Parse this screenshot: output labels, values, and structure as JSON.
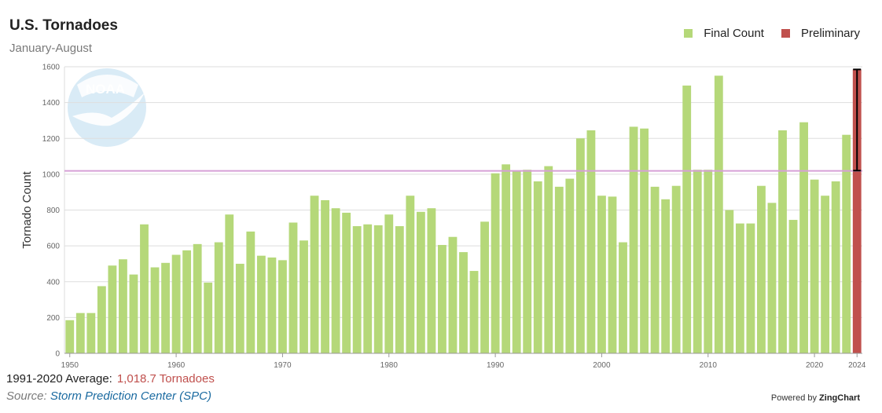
{
  "title": "U.S. Tornadoes",
  "subtitle": "January-August",
  "legend": [
    {
      "label": "Final Count",
      "color": "#b5d879"
    },
    {
      "label": "Preliminary",
      "color": "#c0504d"
    }
  ],
  "logo_text": "NOAA",
  "footer": {
    "average_label": "1991-2020 Average:",
    "average_value": "1,018.7 Tornadoes",
    "source_label": "Source:",
    "source_name": "Storm Prediction Center",
    "source_abbr": "(SPC)",
    "powered_label": "Powered by",
    "powered_brand": "ZingChart"
  },
  "colors": {
    "final": "#b5d879",
    "preliminary": "#c0504d",
    "average_line": "#d6a0d6",
    "grid": "#dedede",
    "error_bar": "#000000"
  },
  "chart_data": {
    "type": "bar",
    "ylabel": "Tornado Count",
    "ylim": [
      0,
      1600
    ],
    "yticks": [
      0,
      200,
      400,
      600,
      800,
      1000,
      1200,
      1400,
      1600
    ],
    "xticks": [
      1950,
      1960,
      1970,
      1980,
      1990,
      2000,
      2010,
      2020,
      2024
    ],
    "average": 1018.7,
    "series": [
      {
        "name": "Final Count",
        "x": [
          1950,
          1951,
          1952,
          1953,
          1954,
          1955,
          1956,
          1957,
          1958,
          1959,
          1960,
          1961,
          1962,
          1963,
          1964,
          1965,
          1966,
          1967,
          1968,
          1969,
          1970,
          1971,
          1972,
          1973,
          1974,
          1975,
          1976,
          1977,
          1978,
          1979,
          1980,
          1981,
          1982,
          1983,
          1984,
          1985,
          1986,
          1987,
          1988,
          1989,
          1990,
          1991,
          1992,
          1993,
          1994,
          1995,
          1996,
          1997,
          1998,
          1999,
          2000,
          2001,
          2002,
          2003,
          2004,
          2005,
          2006,
          2007,
          2008,
          2009,
          2010,
          2011,
          2012,
          2013,
          2014,
          2015,
          2016,
          2017,
          2018,
          2019,
          2020,
          2021,
          2022,
          2023
        ],
        "values": [
          185,
          225,
          225,
          375,
          490,
          525,
          440,
          720,
          480,
          505,
          550,
          575,
          610,
          395,
          620,
          775,
          500,
          680,
          545,
          535,
          520,
          730,
          630,
          880,
          855,
          810,
          785,
          710,
          720,
          715,
          775,
          710,
          880,
          790,
          810,
          605,
          650,
          565,
          460,
          735,
          1005,
          1055,
          1015,
          1025,
          960,
          1045,
          930,
          975,
          1200,
          1245,
          880,
          875,
          620,
          1265,
          1255,
          930,
          860,
          935,
          1495,
          1025,
          1025,
          1550,
          800,
          725,
          725,
          935,
          840,
          1245,
          745,
          1290,
          970,
          880,
          960,
          1220
        ]
      },
      {
        "name": "Preliminary",
        "x": [
          2024
        ],
        "values": [
          1585
        ],
        "error_range": [
          1020,
          1585
        ]
      }
    ]
  }
}
